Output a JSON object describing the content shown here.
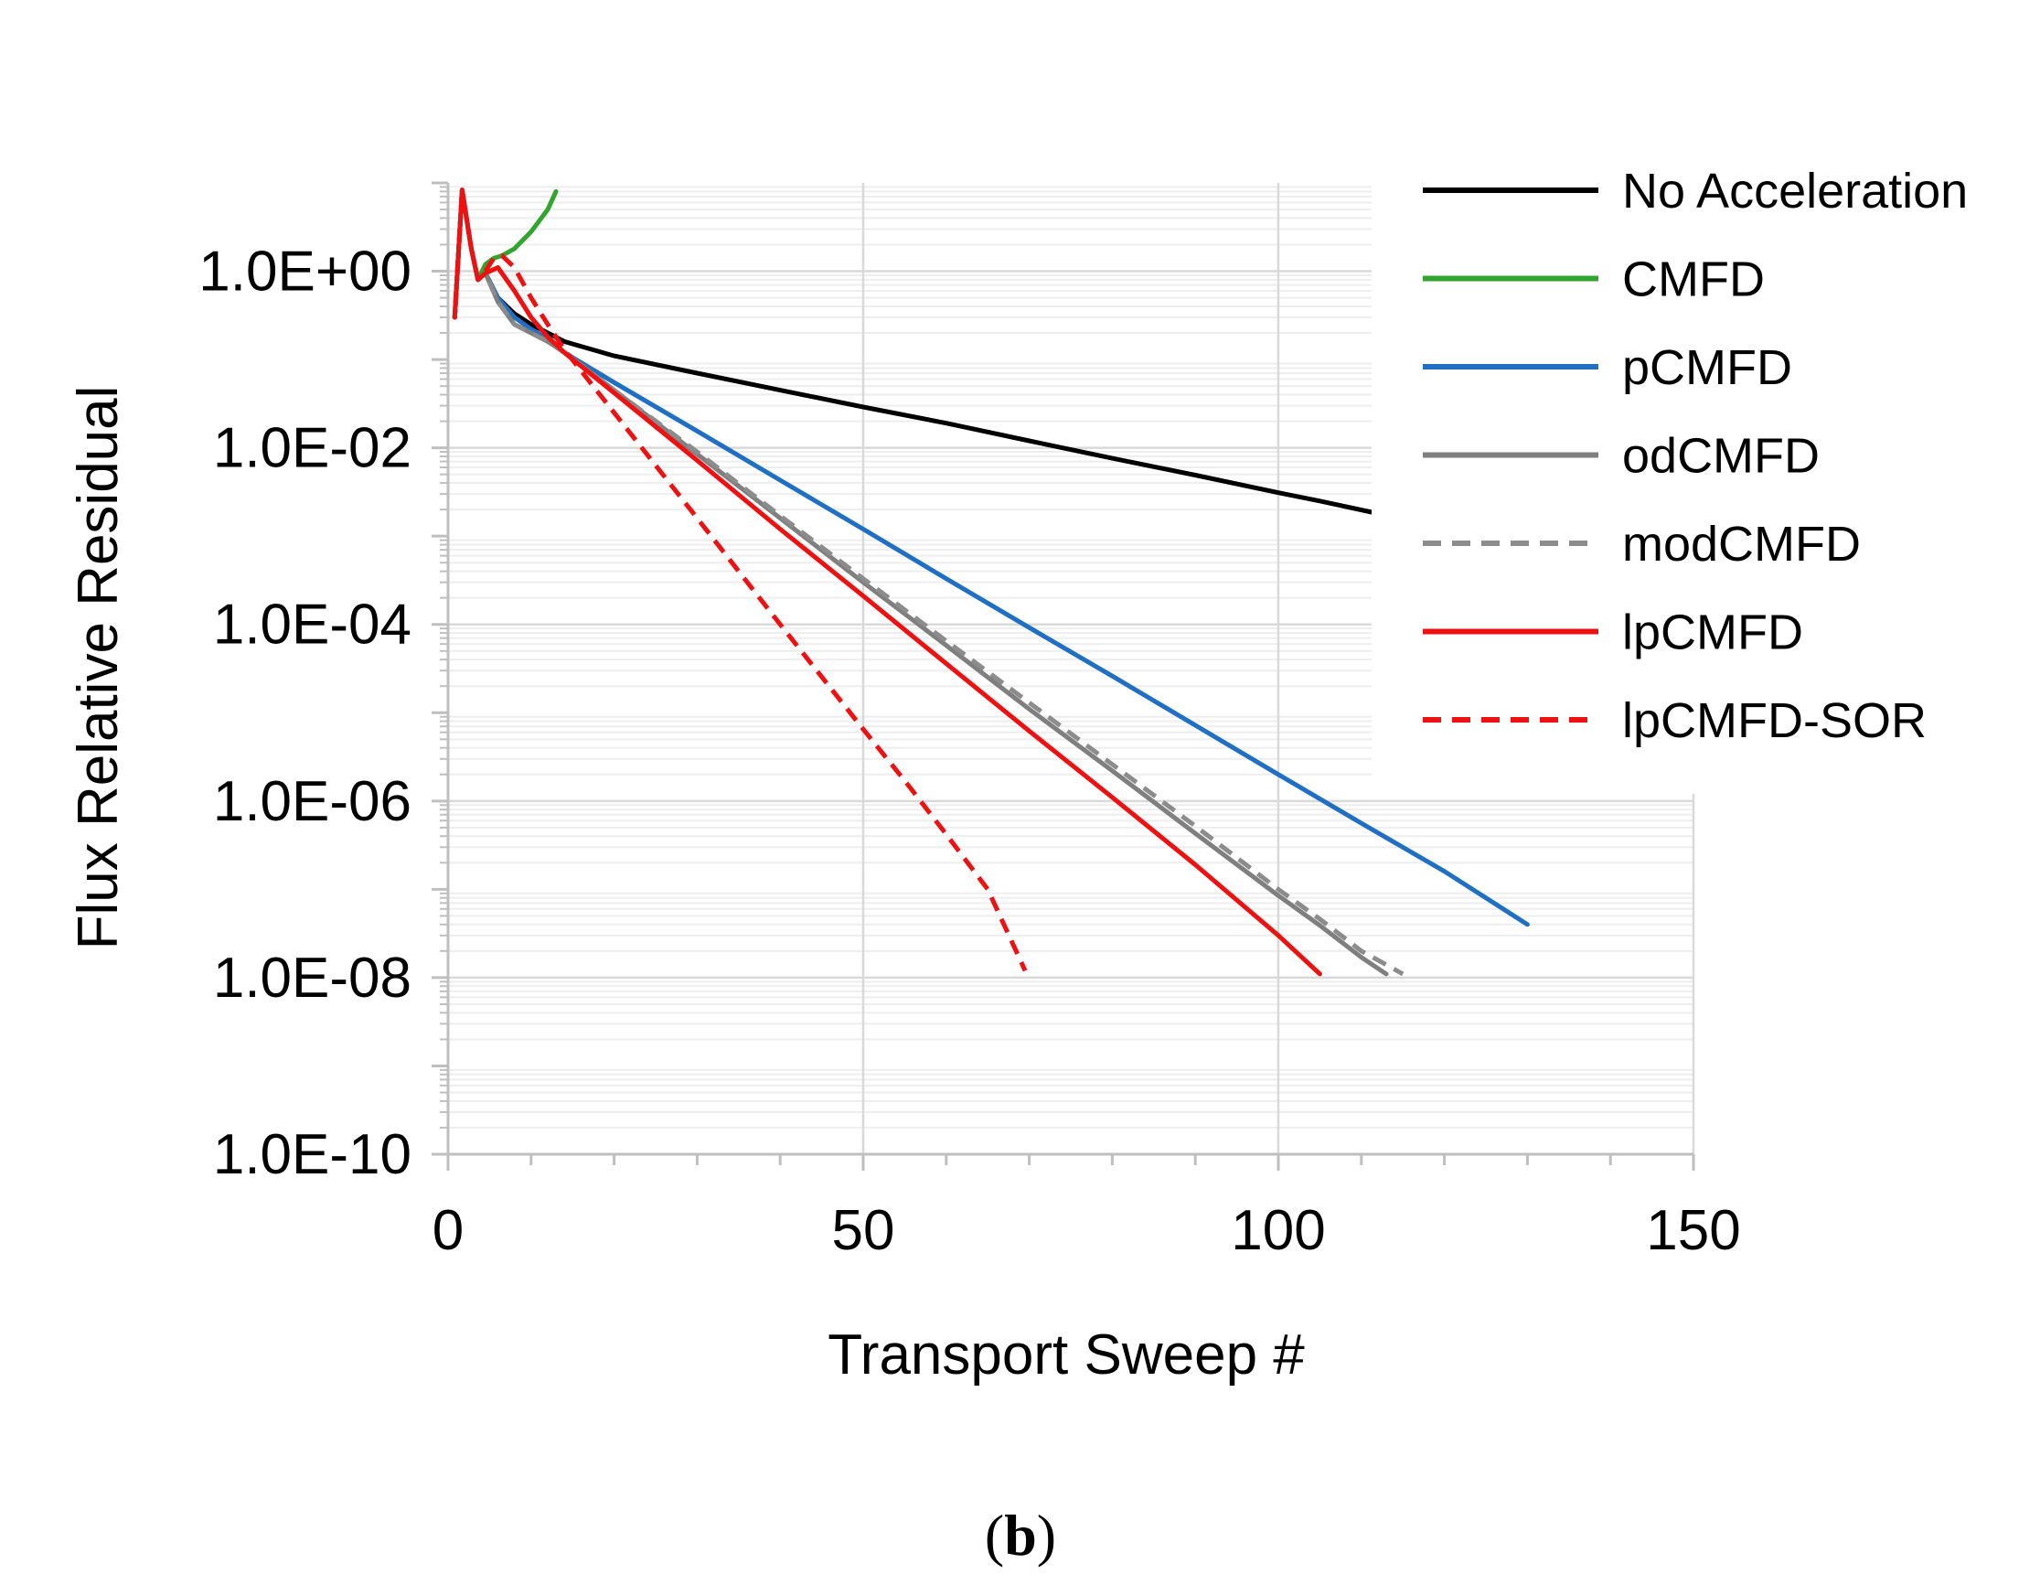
{
  "chart_data": {
    "type": "line",
    "title": "",
    "xlabel": "Transport Sweep #",
    "ylabel": "Flux Relative Residual",
    "x_scale": "linear",
    "y_scale": "log",
    "xlim": [
      0,
      150
    ],
    "ylim": [
      1e-10,
      10
    ],
    "x_ticks": [
      0,
      50,
      100,
      150
    ],
    "x_tick_labels": [
      "0",
      "50",
      "100",
      "150"
    ],
    "y_ticks": [
      1e-10,
      1e-08,
      1e-06,
      0.0001,
      0.01,
      1
    ],
    "y_tick_labels": [
      "1.0E-10",
      "1.0E-08",
      "1.0E-06",
      "1.0E-04",
      "1.0E-02",
      "1.0E+00"
    ],
    "grid": true,
    "legend_position": "top-right",
    "panel_label": "b",
    "series": [
      {
        "name": "No Acceleration",
        "color": "#000000",
        "dash": "solid",
        "x": [
          0.8,
          1.7,
          2.8,
          3.6,
          4.5,
          6,
          8,
          10,
          12,
          14,
          20,
          30,
          40,
          50,
          60,
          70,
          80,
          90,
          100,
          105,
          112
        ],
        "y": [
          0.3,
          8.3,
          1.8,
          0.8,
          0.95,
          0.5,
          0.33,
          0.25,
          0.2,
          0.16,
          0.11,
          0.07,
          0.045,
          0.029,
          0.019,
          0.012,
          0.0076,
          0.0049,
          0.0031,
          0.0025,
          0.0018
        ]
      },
      {
        "name": "CMFD",
        "color": "#33A52F",
        "dash": "solid",
        "x": [
          0.8,
          1.7,
          2.8,
          3.6,
          4.5,
          5.5,
          6.5,
          8,
          10,
          12,
          13
        ],
        "y": [
          0.3,
          8.3,
          1.8,
          0.8,
          1.2,
          1.4,
          1.5,
          1.8,
          2.8,
          5.0,
          8.0
        ]
      },
      {
        "name": "pCMFD",
        "color": "#1F6FC5",
        "dash": "solid",
        "x": [
          0.8,
          1.7,
          2.8,
          3.6,
          4.5,
          6,
          8,
          10,
          12,
          14,
          20,
          30,
          40,
          50,
          60,
          70,
          80,
          90,
          100,
          110,
          120,
          130
        ],
        "y": [
          0.3,
          8.3,
          1.8,
          0.8,
          0.95,
          0.5,
          0.3,
          0.22,
          0.17,
          0.12,
          0.055,
          0.0155,
          0.0043,
          0.0012,
          0.00033,
          9.2e-05,
          2.6e-05,
          7.2e-06,
          2e-06,
          5.6e-07,
          1.6e-07,
          4e-08
        ]
      },
      {
        "name": "odCMFD",
        "color": "#7F7F7F",
        "dash": "solid",
        "x": [
          0.8,
          1.7,
          2.8,
          3.6,
          4.5,
          6,
          8,
          10,
          12,
          14,
          20,
          30,
          40,
          50,
          60,
          70,
          80,
          90,
          100,
          105,
          110,
          113
        ],
        "y": [
          0.3,
          8.3,
          1.8,
          0.8,
          0.95,
          0.45,
          0.25,
          0.2,
          0.16,
          0.12,
          0.045,
          0.0085,
          0.0016,
          0.0003,
          5.8e-05,
          1.1e-05,
          2.2e-06,
          4.3e-07,
          8.5e-08,
          3.9e-08,
          1.7e-08,
          1.1e-08
        ]
      },
      {
        "name": "modCMFD",
        "color": "#8C8C8C",
        "dash": "dashed",
        "x": [
          0.8,
          1.7,
          2.8,
          3.6,
          4.5,
          6,
          8,
          10,
          12,
          14,
          20,
          30,
          40,
          50,
          60,
          70,
          80,
          90,
          100,
          105,
          110,
          115
        ],
        "y": [
          0.3,
          8.3,
          1.8,
          0.8,
          0.95,
          0.45,
          0.25,
          0.2,
          0.16,
          0.12,
          0.045,
          0.009,
          0.0017,
          0.00033,
          6.5e-05,
          1.3e-05,
          2.6e-06,
          5.2e-07,
          1e-07,
          4.6e-08,
          2e-08,
          1.1e-08
        ]
      },
      {
        "name": "lpCMFD",
        "color": "#EE1111",
        "dash": "solid",
        "x": [
          0.8,
          1.7,
          2.8,
          3.6,
          4.5,
          6,
          8,
          10,
          12,
          14,
          20,
          30,
          40,
          50,
          60,
          70,
          80,
          90,
          100,
          105
        ],
        "y": [
          0.3,
          8.3,
          1.8,
          0.8,
          0.95,
          1.1,
          0.6,
          0.3,
          0.18,
          0.12,
          0.042,
          0.0072,
          0.0012,
          0.00021,
          3.6e-05,
          6.2e-06,
          1.1e-06,
          1.9e-07,
          3e-08,
          1.1e-08
        ]
      },
      {
        "name": "lpCMFD-SOR",
        "color": "#EE1111",
        "dash": "dashed",
        "x": [
          4.5,
          5.5,
          6.5,
          8,
          10,
          12,
          14,
          20,
          30,
          40,
          50,
          55,
          60,
          65,
          69.5
        ],
        "y": [
          1.0,
          1.4,
          1.5,
          1.1,
          0.5,
          0.25,
          0.13,
          0.025,
          0.0016,
          0.0001,
          6.5e-06,
          1.7e-06,
          4.2e-07,
          1e-07,
          1.2e-08
        ]
      }
    ]
  }
}
